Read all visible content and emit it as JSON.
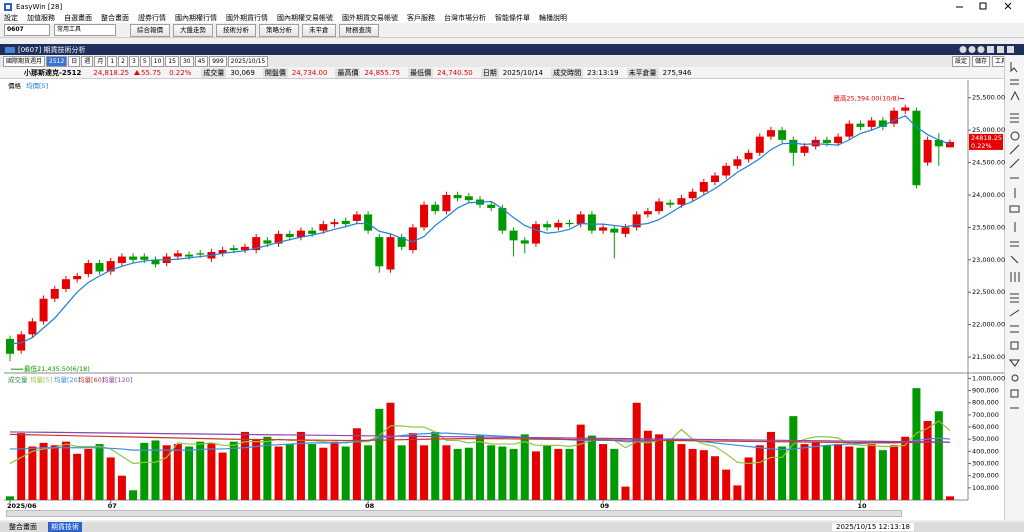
{
  "window": {
    "title": "EasyWin [28]"
  },
  "menu": [
    "設定",
    "加值服務",
    "自選畫面",
    "整合畫面",
    "證券行情",
    "國內期權行情",
    "國外期貨行情",
    "國內期權交易帳號",
    "國外期貨交易帳號",
    "客戶服務",
    "台灣市場分析",
    "智能條件單",
    "輪播說明"
  ],
  "toolbar": {
    "code": "0607",
    "tools": "常用工具",
    "buttons": [
      "綜合報價",
      "大盤走勢",
      "技術分析",
      "策略分析",
      "未平倉",
      "財務查詢"
    ]
  },
  "panel": {
    "title": "[0607] 期貨技術分析",
    "actions": [
      "設定",
      "儲存",
      "工具"
    ],
    "controls": [
      "國際期貨週月",
      "2512",
      "日",
      "週",
      "月",
      "1",
      "2",
      "3",
      "5",
      "10",
      "15",
      "30",
      "45",
      "999",
      "2025/10/15"
    ]
  },
  "info": {
    "symbol": "小那斯達克-2512",
    "price": "24,818.25",
    "change": "55.75",
    "change_pct": "0.22%",
    "fields": [
      [
        "成交量",
        "30,069"
      ],
      [
        "開盤價",
        "24,734.00"
      ],
      [
        "最高價",
        "24,855.75"
      ],
      [
        "最低價",
        "24,740.50"
      ],
      [
        "日期",
        "2025/10/14"
      ],
      [
        "成交時間",
        "23:13:19"
      ],
      [
        "未平倉量",
        "275,946"
      ]
    ]
  },
  "chart_data": {
    "type": "candlestick",
    "y_label": "價格",
    "up_color": "#e60000",
    "down_color": "#009a00",
    "categories": [
      "2025/06",
      null,
      null,
      null,
      null,
      null,
      null,
      null,
      null,
      "07",
      null,
      null,
      null,
      null,
      null,
      null,
      null,
      null,
      null,
      null,
      null,
      null,
      null,
      null,
      null,
      null,
      null,
      null,
      null,
      null,
      null,
      null,
      "08",
      null,
      null,
      null,
      null,
      null,
      null,
      null,
      null,
      null,
      null,
      null,
      null,
      null,
      null,
      null,
      null,
      null,
      null,
      null,
      null,
      "09",
      null,
      null,
      null,
      null,
      null,
      null,
      null,
      null,
      null,
      null,
      null,
      null,
      null,
      null,
      null,
      null,
      null,
      null,
      null,
      null,
      null,
      null,
      "10",
      null,
      null,
      null,
      null,
      null,
      null,
      null,
      null
    ],
    "open": [
      21780,
      21600,
      21850,
      22050,
      22400,
      22550,
      22700,
      22780,
      22950,
      22820,
      22950,
      23050,
      23050,
      23000,
      22950,
      23050,
      23080,
      23100,
      23020,
      23100,
      23180,
      23150,
      23150,
      23300,
      23250,
      23400,
      23350,
      23450,
      23450,
      23550,
      23600,
      23600,
      23700,
      23350,
      22850,
      23350,
      23150,
      23500,
      23850,
      23750,
      24000,
      23980,
      23930,
      23850,
      23800,
      23450,
      23300,
      23250,
      23550,
      23500,
      23570,
      23550,
      23700,
      23450,
      23480,
      23400,
      23500,
      23700,
      23750,
      23880,
      23850,
      23950,
      24050,
      24200,
      24300,
      24450,
      24550,
      24650,
      24900,
      25000,
      24850,
      24650,
      24750,
      24850,
      24800,
      24900,
      25100,
      25050,
      25150,
      25100,
      25300,
      25300,
      24500,
      24850,
      24734
    ],
    "high": [
      21830,
      21900,
      22100,
      22450,
      22600,
      22750,
      22800,
      23000,
      23000,
      23030,
      23100,
      23100,
      23100,
      23050,
      23100,
      23150,
      23130,
      23150,
      23170,
      23200,
      23230,
      23250,
      23400,
      23350,
      23450,
      23450,
      23500,
      23500,
      23600,
      23630,
      23650,
      23750,
      23750,
      23400,
      23400,
      23400,
      23550,
      23900,
      23900,
      24050,
      24050,
      24030,
      23980,
      23900,
      23850,
      23500,
      23350,
      23600,
      23600,
      23620,
      23620,
      23750,
      23750,
      23550,
      23530,
      23550,
      23750,
      23800,
      23950,
      23930,
      24000,
      24100,
      24250,
      24350,
      24500,
      24600,
      24700,
      24950,
      25050,
      25050,
      24900,
      24800,
      24900,
      24900,
      24950,
      25150,
      25150,
      25200,
      25200,
      25350,
      25394,
      25350,
      24900,
      24950,
      24855.75
    ],
    "low": [
      21435.5,
      21550,
      21800,
      22000,
      22350,
      22500,
      22650,
      22730,
      22770,
      22770,
      22900,
      22950,
      22950,
      22880,
      22900,
      23000,
      23000,
      23030,
      22970,
      23050,
      23100,
      23100,
      23100,
      23200,
      23200,
      23300,
      23300,
      23350,
      23400,
      23500,
      23500,
      23550,
      23400,
      22800,
      22800,
      23150,
      23100,
      23450,
      23700,
      23700,
      23900,
      23870,
      23800,
      23750,
      23400,
      23050,
      23100,
      23200,
      23450,
      23450,
      23500,
      23500,
      23400,
      23400,
      23020,
      23350,
      23450,
      23650,
      23700,
      23800,
      23800,
      23900,
      24000,
      24150,
      24250,
      24400,
      24500,
      24600,
      24850,
      24800,
      24450,
      24600,
      24700,
      24750,
      24750,
      24850,
      25000,
      25000,
      25000,
      25050,
      25250,
      24100,
      24450,
      24450,
      24740.5
    ],
    "close": [
      21550,
      21850,
      22050,
      22400,
      22550,
      22700,
      22750,
      22950,
      22820,
      22980,
      23050,
      23000,
      23000,
      22930,
      23050,
      23100,
      23050,
      23080,
      23120,
      23150,
      23150,
      23200,
      23350,
      23250,
      23400,
      23350,
      23450,
      23400,
      23550,
      23580,
      23550,
      23700,
      23450,
      22900,
      23350,
      23200,
      23500,
      23850,
      23750,
      24000,
      23950,
      23920,
      23850,
      23800,
      23450,
      23300,
      23250,
      23550,
      23500,
      23570,
      23550,
      23700,
      23450,
      23500,
      23420,
      23500,
      23700,
      23750,
      23900,
      23850,
      23950,
      24050,
      24200,
      24300,
      24450,
      24550,
      24650,
      24900,
      25000,
      24850,
      24650,
      24750,
      24850,
      24800,
      24900,
      25100,
      25050,
      25150,
      25050,
      25300,
      25350,
      24150,
      24850,
      24750,
      24818.25
    ],
    "series": [
      {
        "name": "均價[5]",
        "color": "#1e80d8",
        "values": [
          21700,
          21720,
          21800,
          21950,
          22100,
          22300,
          22500,
          22650,
          22750,
          22840,
          22900,
          22950,
          22980,
          23000,
          23000,
          23010,
          23030,
          23050,
          23070,
          23100,
          23120,
          23140,
          23180,
          23220,
          23270,
          23310,
          23350,
          23380,
          23420,
          23470,
          23510,
          23560,
          23560,
          23440,
          23400,
          23330,
          23280,
          23360,
          23530,
          23660,
          23800,
          23880,
          23890,
          23900,
          23790,
          23650,
          23530,
          23460,
          23410,
          23430,
          23470,
          23560,
          23550,
          23550,
          23530,
          23510,
          23540,
          23560,
          23620,
          23720,
          23830,
          23900,
          24000,
          24100,
          24220,
          24350,
          24450,
          24560,
          24700,
          24790,
          24800,
          24780,
          24790,
          24780,
          24770,
          24850,
          24950,
          25000,
          25070,
          25150,
          25220,
          25050,
          24930,
          24850,
          24780
        ]
      }
    ],
    "ylim": [
      21300,
      25650
    ],
    "yticks": [
      {
        "value": 21500,
        "label": "21,500.00"
      },
      {
        "value": 22000,
        "label": "22,000.00"
      },
      {
        "value": 22500,
        "label": "22,500.00"
      },
      {
        "value": 23000,
        "label": "23,000.00"
      },
      {
        "value": 23500,
        "label": "23,500.00"
      },
      {
        "value": 24000,
        "label": "24,000.00"
      },
      {
        "value": 24500,
        "label": "24,500.00"
      },
      {
        "value": 25000,
        "label": "25,000.00"
      },
      {
        "value": 25500,
        "label": "25,500.00"
      }
    ],
    "annotations": {
      "high": "最高25,394.00(10/8)",
      "low": "最低21,435.50(6/18)"
    },
    "price_tag": "24818.25",
    "volume": {
      "label": "成交量",
      "values": [
        30000,
        550000,
        440000,
        470000,
        450000,
        480000,
        380000,
        420000,
        460000,
        350000,
        200000,
        80000,
        470000,
        490000,
        450000,
        460000,
        440000,
        480000,
        470000,
        390000,
        480000,
        560000,
        500000,
        520000,
        440000,
        460000,
        560000,
        460000,
        430000,
        480000,
        440000,
        590000,
        450000,
        750000,
        800000,
        450000,
        550000,
        450000,
        560000,
        450000,
        420000,
        430000,
        530000,
        450000,
        440000,
        420000,
        540000,
        400000,
        450000,
        420000,
        420000,
        620000,
        530000,
        460000,
        420000,
        110000,
        800000,
        570000,
        540000,
        500000,
        460000,
        420000,
        410000,
        360000,
        250000,
        120000,
        350000,
        450000,
        560000,
        440000,
        690000,
        460000,
        480000,
        450000,
        460000,
        440000,
        430000,
        460000,
        410000,
        450000,
        520000,
        920000,
        650000,
        730000,
        30069
      ],
      "ylim": [
        0,
        1020000
      ],
      "yticks": [
        {
          "value": 100000,
          "label": "100,000"
        },
        {
          "value": 200000,
          "label": "200,000"
        },
        {
          "value": 300000,
          "label": "300,000"
        },
        {
          "value": 400000,
          "label": "400,000"
        },
        {
          "value": 500000,
          "label": "500,000"
        },
        {
          "value": 600000,
          "label": "600,000"
        },
        {
          "value": 700000,
          "label": "700,000"
        },
        {
          "value": 800000,
          "label": "800,000"
        },
        {
          "value": 900000,
          "label": "900,000"
        },
        {
          "value": 1000000,
          "label": "1,000,000"
        }
      ],
      "series": [
        {
          "name": "均量[5]",
          "color": "#8cc63f",
          "values": [
            300000,
            350000,
            400000,
            420000,
            430000,
            460000,
            440000,
            440000,
            440000,
            420000,
            360000,
            300000,
            310000,
            310000,
            350000,
            470000,
            460000,
            460000,
            470000,
            450000,
            450000,
            480000,
            480000,
            480000,
            500000,
            490000,
            490000,
            490000,
            480000,
            470000,
            470000,
            480000,
            480000,
            530000,
            610000,
            610000,
            600000,
            600000,
            560000,
            490000,
            490000,
            470000,
            480000,
            460000,
            460000,
            460000,
            480000,
            450000,
            450000,
            450000,
            440000,
            460000,
            490000,
            500000,
            490000,
            430000,
            480000,
            470000,
            490000,
            490000,
            580000,
            500000,
            460000,
            440000,
            380000,
            310000,
            300000,
            310000,
            350000,
            350000,
            460000,
            500000,
            520000,
            520000,
            510000,
            460000,
            450000,
            450000,
            440000,
            440000,
            450000,
            550000,
            590000,
            650000,
            570000
          ]
        },
        {
          "name": "均量[20]",
          "color": "#3c8ee0",
          "values": [
            420000,
            420000,
            425000,
            430000,
            430000,
            430000,
            430000,
            430000,
            430000,
            425000,
            420000,
            410000,
            410000,
            410000,
            410000,
            410000,
            410000,
            415000,
            420000,
            420000,
            425000,
            430000,
            440000,
            450000,
            455000,
            460000,
            465000,
            470000,
            470000,
            470000,
            475000,
            480000,
            490000,
            510000,
            520000,
            530000,
            540000,
            545000,
            550000,
            550000,
            545000,
            540000,
            535000,
            530000,
            525000,
            520000,
            515000,
            510000,
            505000,
            500000,
            495000,
            490000,
            490000,
            490000,
            490000,
            480000,
            480000,
            485000,
            490000,
            490000,
            495000,
            490000,
            480000,
            470000,
            460000,
            450000,
            440000,
            430000,
            420000,
            415000,
            420000,
            430000,
            440000,
            450000,
            455000,
            460000,
            465000,
            470000,
            470000,
            470000,
            475000,
            490000,
            500000,
            510000,
            500000
          ]
        },
        {
          "name": "均量[60]",
          "color": "#c0392b",
          "values": [
            540000,
            538000,
            536000,
            534000,
            532000,
            530000,
            528000,
            526000,
            524000,
            522000,
            520000,
            518000,
            516000,
            514000,
            512000,
            510000,
            508000,
            506000,
            504000,
            502000,
            500000,
            499000,
            498000,
            497000,
            496000,
            495000,
            494000,
            493000,
            492000,
            491000,
            490000,
            490000,
            491000,
            492000,
            494000,
            496000,
            498000,
            500000,
            502000,
            503000,
            504000,
            505000,
            505000,
            505000,
            504000,
            503000,
            502000,
            501000,
            500000,
            499000,
            498000,
            497000,
            496000,
            495000,
            494000,
            493000,
            492000,
            491000,
            490000,
            489000,
            488000,
            487000,
            486000,
            485000,
            484000,
            483000,
            482000,
            481000,
            480000,
            479000,
            478000,
            477000,
            476000,
            475000,
            474000,
            473000,
            472000,
            472000,
            472000,
            472000,
            473000,
            474000,
            475000,
            476000,
            476000
          ]
        },
        {
          "name": "均量[120]",
          "color": "#8e44ad",
          "values": [
            560000,
            559000,
            558000,
            557000,
            556000,
            555000,
            554000,
            553000,
            552000,
            551000,
            550000,
            549000,
            548000,
            547000,
            546000,
            545000,
            544000,
            543000,
            542000,
            541000,
            540000,
            539000,
            538000,
            537000,
            536000,
            535000,
            534000,
            533000,
            532000,
            531000,
            530000,
            529000,
            528000,
            527000,
            526000,
            525000,
            524000,
            523000,
            522000,
            521000,
            520000,
            519000,
            518000,
            517000,
            516000,
            515000,
            514000,
            513000,
            512000,
            511000,
            510000,
            509000,
            508000,
            507000,
            506000,
            505000,
            504000,
            503000,
            502000,
            501000,
            500000,
            499000,
            498000,
            497000,
            496000,
            495000,
            494000,
            493000,
            492000,
            491000,
            490000,
            489000,
            488000,
            487000,
            486000,
            485000,
            484000,
            483000,
            482000,
            481000,
            480000,
            479000,
            478000,
            477000,
            476000
          ]
        }
      ]
    }
  },
  "statusbar": {
    "left": [
      "整合畫面",
      "期貨技術"
    ],
    "clock": "2025/10/15 12:13:18"
  }
}
